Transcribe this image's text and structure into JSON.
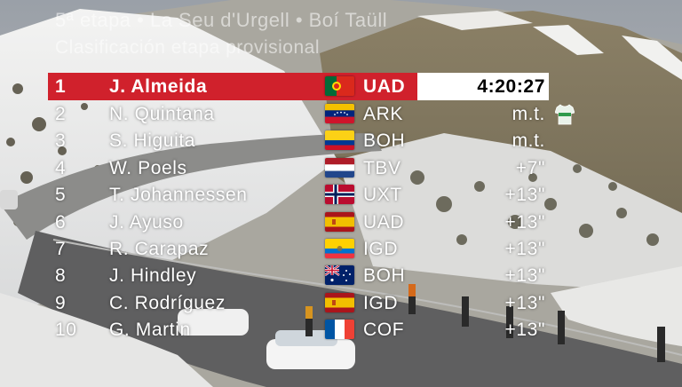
{
  "stage": {
    "title": "5ª etapa • La Seu d'Urgell • Boí Taüll",
    "subtitle": "Clasificación etapa provisional"
  },
  "colors": {
    "leader_row": "#d0212c",
    "time_box": "#ffffff",
    "text": "#ffffff"
  },
  "leader": {
    "position": "1",
    "rider": "J. Almeida",
    "flag": "portugal-flag",
    "team": "UAD",
    "time": "4:20:27"
  },
  "standings": [
    {
      "position": "2",
      "rider": "N. Quintana",
      "flag": "venezuela-flag",
      "team": "ARK",
      "gap": "m.t.",
      "jersey": "points-jersey-icon"
    },
    {
      "position": "3",
      "rider": "S. Higuita",
      "flag": "colombia-flag",
      "team": "BOH",
      "gap": "m.t."
    },
    {
      "position": "4",
      "rider": "W. Poels",
      "flag": "netherlands-flag",
      "team": "TBV",
      "gap": "+7\""
    },
    {
      "position": "5",
      "rider": "T. Johannessen",
      "flag": "norway-flag",
      "team": "UXT",
      "gap": "+13\""
    },
    {
      "position": "6",
      "rider": "J. Ayuso",
      "flag": "spain-flag",
      "team": "UAD",
      "gap": "+13\""
    },
    {
      "position": "7",
      "rider": "R. Carapaz",
      "flag": "ecuador-flag",
      "team": "IGD",
      "gap": "+13\""
    },
    {
      "position": "8",
      "rider": "J. Hindley",
      "flag": "australia-flag",
      "team": "BOH",
      "gap": "+13\""
    },
    {
      "position": "9",
      "rider": "C. Rodríguez",
      "flag": "spain-flag",
      "team": "IGD",
      "gap": "+13\""
    },
    {
      "position": "10",
      "rider": "G. Martin",
      "flag": "france-flag",
      "team": "COF",
      "gap": "+13\""
    }
  ]
}
